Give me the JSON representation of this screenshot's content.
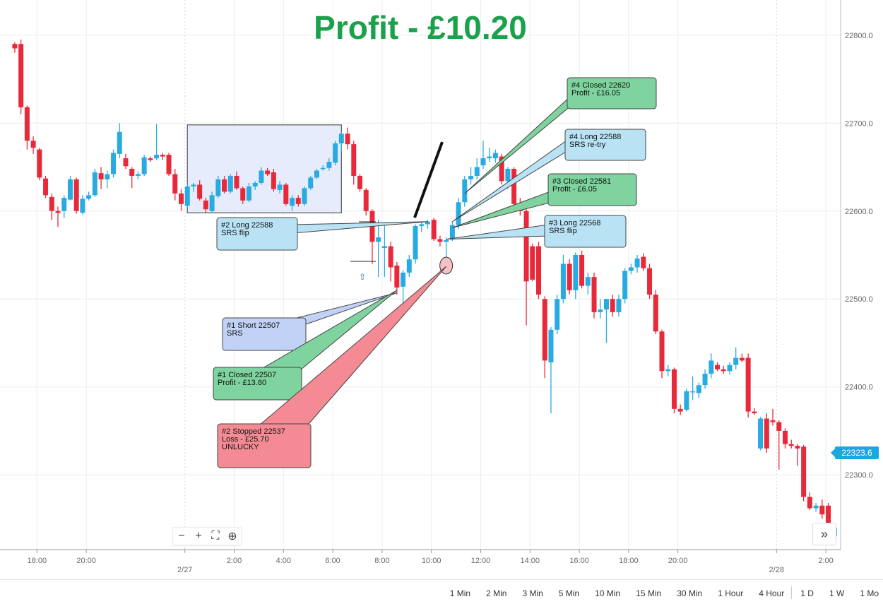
{
  "title": "Profit - £10.20",
  "last_price": "22323.6",
  "zoom_controls": [
    {
      "name": "zoom-out-button",
      "glyph": "−"
    },
    {
      "name": "zoom-in-button",
      "glyph": "+"
    },
    {
      "name": "fullscreen-button",
      "glyph": "⛶"
    },
    {
      "name": "zoom-reset-button",
      "glyph": "⊕"
    }
  ],
  "expand_glyph": "»",
  "timeframes": [
    "1 Min",
    "2 Min",
    "3 Min",
    "5 Min",
    "10 Min",
    "15 Min",
    "30 Min",
    "1 Hour",
    "4 Hour",
    "1 D",
    "1 W",
    "1 Mo"
  ],
  "chart_data": {
    "type": "candlestick",
    "y_axis": {
      "min": 22215,
      "max": 22840,
      "ticks": [
        "22300.0",
        "22400.0",
        "22500.0",
        "22600.0",
        "22700.0",
        "22800.0"
      ]
    },
    "x_ticks": [
      {
        "label": "18:00",
        "t": -6
      },
      {
        "label": "20:00",
        "t": -4
      },
      {
        "label": "2/27",
        "t": 0,
        "date": true
      },
      {
        "label": "2:00",
        "t": 2
      },
      {
        "label": "4:00",
        "t": 4
      },
      {
        "label": "6:00",
        "t": 6
      },
      {
        "label": "8:00",
        "t": 8
      },
      {
        "label": "10:00",
        "t": 10
      },
      {
        "label": "12:00",
        "t": 12
      },
      {
        "label": "14:00",
        "t": 14
      },
      {
        "label": "16:00",
        "t": 16
      },
      {
        "label": "18:00",
        "t": 18
      },
      {
        "label": "20:00",
        "t": 20
      },
      {
        "label": "2/28",
        "t": 24,
        "date": true
      },
      {
        "label": "2:00",
        "t": 26
      }
    ],
    "colors": {
      "up": "#29abe2",
      "down": "#e8293a",
      "grid": "#ececec",
      "box": "#e3e9fb"
    },
    "candles": [
      {
        "t": -6.9,
        "o": 22790,
        "h": 22792,
        "l": 22780,
        "c": 22785
      },
      {
        "t": -6.65,
        "o": 22790,
        "h": 22795,
        "l": 22710,
        "c": 22718
      },
      {
        "t": -6.4,
        "o": 22718,
        "h": 22720,
        "l": 22670,
        "c": 22680
      },
      {
        "t": -6.15,
        "o": 22680,
        "h": 22685,
        "l": 22665,
        "c": 22672
      },
      {
        "t": -5.9,
        "o": 22670,
        "h": 22672,
        "l": 22635,
        "c": 22638
      },
      {
        "t": -5.65,
        "o": 22637,
        "h": 22640,
        "l": 22615,
        "c": 22618
      },
      {
        "t": -5.4,
        "o": 22616,
        "h": 22620,
        "l": 22590,
        "c": 22600
      },
      {
        "t": -5.15,
        "o": 22600,
        "h": 22605,
        "l": 22582,
        "c": 22598
      },
      {
        "t": -4.9,
        "o": 22600,
        "h": 22618,
        "l": 22592,
        "c": 22615
      },
      {
        "t": -4.65,
        "o": 22613,
        "h": 22640,
        "l": 22612,
        "c": 22636
      },
      {
        "t": -4.4,
        "o": 22636,
        "h": 22638,
        "l": 22597,
        "c": 22600
      },
      {
        "t": -4.15,
        "o": 22598,
        "h": 22618,
        "l": 22596,
        "c": 22614
      },
      {
        "t": -3.9,
        "o": 22614,
        "h": 22622,
        "l": 22612,
        "c": 22618
      },
      {
        "t": -3.65,
        "o": 22618,
        "h": 22648,
        "l": 22616,
        "c": 22644
      },
      {
        "t": -3.4,
        "o": 22643,
        "h": 22650,
        "l": 22625,
        "c": 22636
      },
      {
        "t": -3.15,
        "o": 22636,
        "h": 22646,
        "l": 22626,
        "c": 22642
      },
      {
        "t": -2.9,
        "o": 22642,
        "h": 22670,
        "l": 22638,
        "c": 22666
      },
      {
        "t": -2.65,
        "o": 22665,
        "h": 22700,
        "l": 22660,
        "c": 22690
      },
      {
        "t": -2.4,
        "o": 22660,
        "h": 22665,
        "l": 22648,
        "c": 22651
      },
      {
        "t": -2.15,
        "o": 22648,
        "h": 22650,
        "l": 22626,
        "c": 22640
      },
      {
        "t": -1.9,
        "o": 22640,
        "h": 22645,
        "l": 22636,
        "c": 22642
      },
      {
        "t": -1.65,
        "o": 22642,
        "h": 22664,
        "l": 22640,
        "c": 22661
      },
      {
        "t": -1.4,
        "o": 22660,
        "h": 22662,
        "l": 22656,
        "c": 22658
      },
      {
        "t": -1.15,
        "o": 22660,
        "h": 22699,
        "l": 22658,
        "c": 22664
      },
      {
        "t": -0.9,
        "o": 22664,
        "h": 22666,
        "l": 22658,
        "c": 22662
      },
      {
        "t": -0.65,
        "o": 22664,
        "h": 22666,
        "l": 22640,
        "c": 22642
      },
      {
        "t": -0.4,
        "o": 22642,
        "h": 22648,
        "l": 22612,
        "c": 22620
      },
      {
        "t": -0.15,
        "o": 22620,
        "h": 22625,
        "l": 22600,
        "c": 22608
      },
      {
        "t": 0.1,
        "o": 22606,
        "h": 22630,
        "l": 22604,
        "c": 22628
      },
      {
        "t": 0.35,
        "o": 22628,
        "h": 22632,
        "l": 22622,
        "c": 22630
      },
      {
        "t": 0.6,
        "o": 22630,
        "h": 22635,
        "l": 22612,
        "c": 22614
      },
      {
        "t": 0.85,
        "o": 22612,
        "h": 22615,
        "l": 22598,
        "c": 22602
      },
      {
        "t": 1.1,
        "o": 22600,
        "h": 22622,
        "l": 22598,
        "c": 22618
      },
      {
        "t": 1.35,
        "o": 22617,
        "h": 22640,
        "l": 22615,
        "c": 22636
      },
      {
        "t": 1.6,
        "o": 22636,
        "h": 22640,
        "l": 22620,
        "c": 22622
      },
      {
        "t": 1.85,
        "o": 22622,
        "h": 22642,
        "l": 22620,
        "c": 22640
      },
      {
        "t": 2.1,
        "o": 22640,
        "h": 22645,
        "l": 22624,
        "c": 22626
      },
      {
        "t": 2.35,
        "o": 22626,
        "h": 22628,
        "l": 22608,
        "c": 22612
      },
      {
        "t": 2.6,
        "o": 22612,
        "h": 22632,
        "l": 22610,
        "c": 22628
      },
      {
        "t": 2.85,
        "o": 22628,
        "h": 22634,
        "l": 22624,
        "c": 22632
      },
      {
        "t": 3.1,
        "o": 22632,
        "h": 22650,
        "l": 22630,
        "c": 22646
      },
      {
        "t": 3.35,
        "o": 22646,
        "h": 22649,
        "l": 22640,
        "c": 22642
      },
      {
        "t": 3.6,
        "o": 22644,
        "h": 22648,
        "l": 22622,
        "c": 22625
      },
      {
        "t": 3.85,
        "o": 22624,
        "h": 22634,
        "l": 22620,
        "c": 22630
      },
      {
        "t": 4.1,
        "o": 22630,
        "h": 22632,
        "l": 22606,
        "c": 22608
      },
      {
        "t": 4.35,
        "o": 22606,
        "h": 22618,
        "l": 22600,
        "c": 22615
      },
      {
        "t": 4.6,
        "o": 22615,
        "h": 22618,
        "l": 22605,
        "c": 22608
      },
      {
        "t": 4.85,
        "o": 22608,
        "h": 22628,
        "l": 22606,
        "c": 22626
      },
      {
        "t": 5.1,
        "o": 22626,
        "h": 22640,
        "l": 22624,
        "c": 22638
      },
      {
        "t": 5.35,
        "o": 22638,
        "h": 22648,
        "l": 22636,
        "c": 22646
      },
      {
        "t": 5.6,
        "o": 22648,
        "h": 22652,
        "l": 22646,
        "c": 22649
      },
      {
        "t": 5.85,
        "o": 22649,
        "h": 22660,
        "l": 22646,
        "c": 22656
      },
      {
        "t": 6.1,
        "o": 22655,
        "h": 22680,
        "l": 22652,
        "c": 22677
      },
      {
        "t": 6.35,
        "o": 22677,
        "h": 22690,
        "l": 22668,
        "c": 22688
      },
      {
        "t": 6.6,
        "o": 22688,
        "h": 22695,
        "l": 22670,
        "c": 22676
      },
      {
        "t": 6.85,
        "o": 22676,
        "h": 22680,
        "l": 22630,
        "c": 22640
      },
      {
        "t": 7.1,
        "o": 22640,
        "h": 22642,
        "l": 22622,
        "c": 22625
      },
      {
        "t": 7.35,
        "o": 22624,
        "h": 22626,
        "l": 22595,
        "c": 22600
      },
      {
        "t": 7.6,
        "o": 22600,
        "h": 22602,
        "l": 22540,
        "c": 22565
      },
      {
        "t": 7.85,
        "o": 22565,
        "h": 22590,
        "l": 22525,
        "c": 22570
      },
      {
        "t": 8.1,
        "o": 22558,
        "h": 22586,
        "l": 22525,
        "c": 22560
      },
      {
        "t": 8.35,
        "o": 22560,
        "h": 22565,
        "l": 22520,
        "c": 22536
      },
      {
        "t": 8.6,
        "o": 22538,
        "h": 22542,
        "l": 22505,
        "c": 22513
      },
      {
        "t": 8.85,
        "o": 22514,
        "h": 22533,
        "l": 22480,
        "c": 22530
      },
      {
        "t": 9.1,
        "o": 22530,
        "h": 22550,
        "l": 22525,
        "c": 22545
      },
      {
        "t": 9.35,
        "o": 22545,
        "h": 22585,
        "l": 22540,
        "c": 22583
      },
      {
        "t": 9.6,
        "o": 22583,
        "h": 22588,
        "l": 22576,
        "c": 22585
      },
      {
        "t": 9.85,
        "o": 22585,
        "h": 22590,
        "l": 22580,
        "c": 22588
      },
      {
        "t": 10.1,
        "o": 22590,
        "h": 22592,
        "l": 22566,
        "c": 22568
      },
      {
        "t": 10.35,
        "o": 22568,
        "h": 22572,
        "l": 22560,
        "c": 22565
      },
      {
        "t": 10.6,
        "o": 22565,
        "h": 22570,
        "l": 22537,
        "c": 22567
      },
      {
        "t": 10.85,
        "o": 22568,
        "h": 22588,
        "l": 22566,
        "c": 22584
      },
      {
        "t": 11.1,
        "o": 22584,
        "h": 22615,
        "l": 22580,
        "c": 22610
      },
      {
        "t": 11.35,
        "o": 22610,
        "h": 22640,
        "l": 22605,
        "c": 22636
      },
      {
        "t": 11.6,
        "o": 22636,
        "h": 22650,
        "l": 22630,
        "c": 22640
      },
      {
        "t": 11.85,
        "o": 22640,
        "h": 22660,
        "l": 22636,
        "c": 22650
      },
      {
        "t": 12.1,
        "o": 22652,
        "h": 22680,
        "l": 22648,
        "c": 22660
      },
      {
        "t": 12.35,
        "o": 22660,
        "h": 22672,
        "l": 22656,
        "c": 22662
      },
      {
        "t": 12.6,
        "o": 22660,
        "h": 22670,
        "l": 22655,
        "c": 22666
      },
      {
        "t": 12.85,
        "o": 22662,
        "h": 22665,
        "l": 22630,
        "c": 22634
      },
      {
        "t": 13.1,
        "o": 22634,
        "h": 22650,
        "l": 22625,
        "c": 22648
      },
      {
        "t": 13.35,
        "o": 22648,
        "h": 22650,
        "l": 22604,
        "c": 22608
      },
      {
        "t": 13.6,
        "o": 22608,
        "h": 22615,
        "l": 22595,
        "c": 22600
      },
      {
        "t": 13.85,
        "o": 22600,
        "h": 22605,
        "l": 22470,
        "c": 22520
      },
      {
        "t": 14.1,
        "o": 22560,
        "h": 22563,
        "l": 22520,
        "c": 22522
      },
      {
        "t": 14.35,
        "o": 22560,
        "h": 22565,
        "l": 22500,
        "c": 22505
      },
      {
        "t": 14.6,
        "o": 22500,
        "h": 22503,
        "l": 22410,
        "c": 22430
      },
      {
        "t": 14.85,
        "o": 22428,
        "h": 22468,
        "l": 22370,
        "c": 22465
      },
      {
        "t": 15.1,
        "o": 22465,
        "h": 22505,
        "l": 22460,
        "c": 22500
      },
      {
        "t": 15.35,
        "o": 22500,
        "h": 22550,
        "l": 22495,
        "c": 22540
      },
      {
        "t": 15.6,
        "o": 22540,
        "h": 22545,
        "l": 22505,
        "c": 22510
      },
      {
        "t": 15.85,
        "o": 22510,
        "h": 22553,
        "l": 22500,
        "c": 22550
      },
      {
        "t": 16.1,
        "o": 22550,
        "h": 22555,
        "l": 22512,
        "c": 22515
      },
      {
        "t": 16.35,
        "o": 22515,
        "h": 22530,
        "l": 22505,
        "c": 22525
      },
      {
        "t": 16.6,
        "o": 22525,
        "h": 22530,
        "l": 22478,
        "c": 22485
      },
      {
        "t": 16.85,
        "o": 22485,
        "h": 22500,
        "l": 22478,
        "c": 22488
      },
      {
        "t": 17.1,
        "o": 22488,
        "h": 22500,
        "l": 22450,
        "c": 22500
      },
      {
        "t": 17.35,
        "o": 22500,
        "h": 22505,
        "l": 22480,
        "c": 22485
      },
      {
        "t": 17.6,
        "o": 22485,
        "h": 22505,
        "l": 22480,
        "c": 22500
      },
      {
        "t": 17.85,
        "o": 22500,
        "h": 22535,
        "l": 22495,
        "c": 22532
      },
      {
        "t": 18.1,
        "o": 22532,
        "h": 22540,
        "l": 22528,
        "c": 22536
      },
      {
        "t": 18.35,
        "o": 22536,
        "h": 22550,
        "l": 22530,
        "c": 22546
      },
      {
        "t": 18.6,
        "o": 22548,
        "h": 22552,
        "l": 22532,
        "c": 22535
      },
      {
        "t": 18.85,
        "o": 22535,
        "h": 22540,
        "l": 22500,
        "c": 22505
      },
      {
        "t": 19.1,
        "o": 22505,
        "h": 22510,
        "l": 22460,
        "c": 22463
      },
      {
        "t": 19.35,
        "o": 22463,
        "h": 22465,
        "l": 22410,
        "c": 22418
      },
      {
        "t": 19.6,
        "o": 22418,
        "h": 22425,
        "l": 22412,
        "c": 22420
      },
      {
        "t": 19.85,
        "o": 22420,
        "h": 22422,
        "l": 22370,
        "c": 22375
      },
      {
        "t": 20.1,
        "o": 22375,
        "h": 22380,
        "l": 22368,
        "c": 22372
      },
      {
        "t": 20.35,
        "o": 22374,
        "h": 22398,
        "l": 22372,
        "c": 22395
      },
      {
        "t": 20.6,
        "o": 22395,
        "h": 22412,
        "l": 22385,
        "c": 22395
      },
      {
        "t": 20.85,
        "o": 22393,
        "h": 22405,
        "l": 22387,
        "c": 22402
      },
      {
        "t": 21.1,
        "o": 22402,
        "h": 22420,
        "l": 22398,
        "c": 22415
      },
      {
        "t": 21.35,
        "o": 22415,
        "h": 22438,
        "l": 22410,
        "c": 22430
      },
      {
        "t": 21.6,
        "o": 22425,
        "h": 22428,
        "l": 22418,
        "c": 22420
      },
      {
        "t": 21.85,
        "o": 22420,
        "h": 22424,
        "l": 22415,
        "c": 22418
      },
      {
        "t": 22.1,
        "o": 22418,
        "h": 22428,
        "l": 22414,
        "c": 22425
      },
      {
        "t": 22.35,
        "o": 22425,
        "h": 22445,
        "l": 22420,
        "c": 22433
      },
      {
        "t": 22.6,
        "o": 22433,
        "h": 22438,
        "l": 22428,
        "c": 22430
      },
      {
        "t": 22.85,
        "o": 22433,
        "h": 22438,
        "l": 22365,
        "c": 22372
      },
      {
        "t": 23.1,
        "o": 22372,
        "h": 22376,
        "l": 22368,
        "c": 22370
      },
      {
        "t": 23.35,
        "o": 22330,
        "h": 22366,
        "l": 22328,
        "c": 22364
      },
      {
        "t": 23.6,
        "o": 22364,
        "h": 22370,
        "l": 22325,
        "c": 22330
      },
      {
        "t": 23.85,
        "o": 22362,
        "h": 22375,
        "l": 22356,
        "c": 22360
      },
      {
        "t": 24.1,
        "o": 22360,
        "h": 22362,
        "l": 22306,
        "c": 22350
      },
      {
        "t": 24.35,
        "o": 22350,
        "h": 22353,
        "l": 22330,
        "c": 22335
      },
      {
        "t": 24.6,
        "o": 22335,
        "h": 22340,
        "l": 22330,
        "c": 22333
      },
      {
        "t": 24.85,
        "o": 22333,
        "h": 22335,
        "l": 22310,
        "c": 22330
      },
      {
        "t": 25.1,
        "o": 22332,
        "h": 22334,
        "l": 22270,
        "c": 22275
      },
      {
        "t": 25.35,
        "o": 22275,
        "h": 22280,
        "l": 22260,
        "c": 22262
      },
      {
        "t": 25.6,
        "o": 22262,
        "h": 22268,
        "l": 22258,
        "c": 22265
      },
      {
        "t": 25.85,
        "o": 22265,
        "h": 22272,
        "l": 22250,
        "c": 22255
      },
      {
        "t": 26.1,
        "o": 22265,
        "h": 22268,
        "l": 22220,
        "c": 22230
      },
      {
        "t": 26.35,
        "o": 22230,
        "h": 22245,
        "l": 22225,
        "c": 22240
      }
    ],
    "highlight_box": {
      "t1": 0.1,
      "t2": 6.35,
      "p1": 22598,
      "p2": 22698
    },
    "annotations": [
      {
        "id": "ann-1-short",
        "lines": [
          "#1 Short 22507",
          "SRS"
        ],
        "fill": "#c2d2f6",
        "target_t": 8.6,
        "target_p": 22507
      },
      {
        "id": "ann-1-closed",
        "lines": [
          "#1 Closed 22507",
          "Profit - £13.80"
        ],
        "fill": "#7ed39f",
        "target_t": 8.6,
        "target_p": 22510
      },
      {
        "id": "ann-2-stopped",
        "lines": [
          "#2 Stopped 22537",
          "Loss - £25.70",
          "UNLUCKY"
        ],
        "fill": "#f48b94",
        "target_t": 10.6,
        "target_p": 22537
      },
      {
        "id": "ann-2-long",
        "lines": [
          "#2 Long 22588",
          "SRS flip"
        ],
        "fill": "#b9e3f5",
        "target_t": 9.85,
        "target_p": 22588
      },
      {
        "id": "ann-3-long",
        "lines": [
          "#3 Long 22568",
          "SRS flip"
        ],
        "fill": "#b9e3f5",
        "target_t": 10.6,
        "target_p": 22568
      },
      {
        "id": "ann-3-closed",
        "lines": [
          "#3 Closed 22581",
          "Profit - £6.05"
        ],
        "fill": "#7ed39f",
        "target_t": 10.85,
        "target_p": 22581
      },
      {
        "id": "ann-4-long",
        "lines": [
          "#4 Long 22588",
          "SRS re-try"
        ],
        "fill": "#b9e3f5",
        "target_t": 10.85,
        "target_p": 22588
      },
      {
        "id": "ann-4-closed",
        "lines": [
          "#4 Closed 22620",
          "Profit - £16.05"
        ],
        "fill": "#7ed39f",
        "target_t": 11.35,
        "target_p": 22620
      }
    ]
  }
}
